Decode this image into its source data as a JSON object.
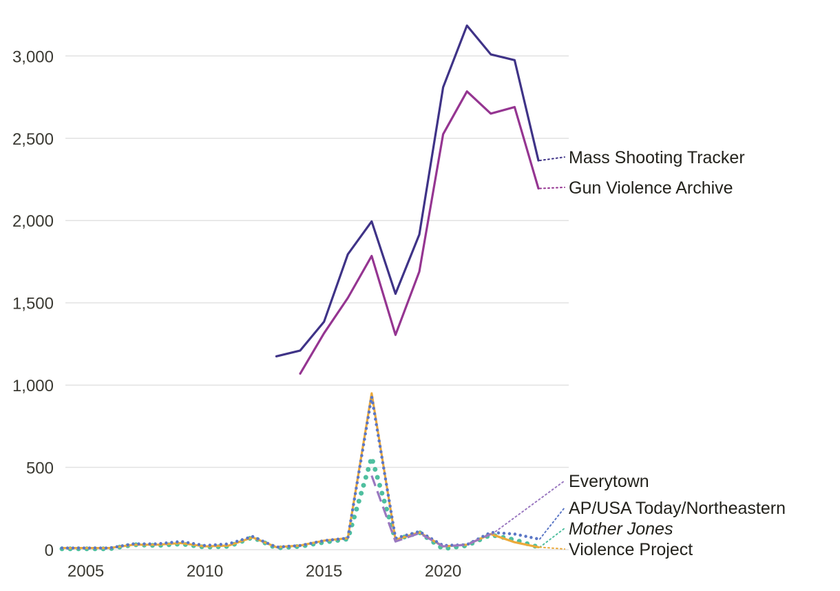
{
  "chart_data": {
    "type": "line",
    "title": "",
    "xlabel": "",
    "ylabel": "",
    "xlim": [
      2004,
      2024
    ],
    "ylim": [
      0,
      3200
    ],
    "grid": "horizontal",
    "x_ticks": [
      2005,
      2010,
      2015,
      2020
    ],
    "x_tick_labels": [
      "2005",
      "2010",
      "2015",
      "2020"
    ],
    "y_ticks": [
      0,
      500,
      1000,
      1500,
      2000,
      2500,
      3000
    ],
    "y_tick_labels": [
      "0",
      "500",
      "1,000",
      "1,500",
      "2,000",
      "2,500",
      "3,000"
    ],
    "series": [
      {
        "name": "Mass Shooting Tracker",
        "color": "#3f3387",
        "style": "solid",
        "x": [
          2013,
          2014,
          2015,
          2016,
          2017,
          2018,
          2019,
          2020,
          2021,
          2022,
          2023,
          2024
        ],
        "values": [
          1175,
          1210,
          1385,
          1795,
          1995,
          1555,
          1915,
          2810,
          3185,
          3010,
          2975,
          2365
        ]
      },
      {
        "name": "Gun Violence Archive",
        "color": "#953591",
        "style": "solid",
        "x": [
          2014,
          2015,
          2016,
          2017,
          2018,
          2019,
          2020,
          2021,
          2022,
          2023,
          2024
        ],
        "values": [
          1070,
          1315,
          1530,
          1785,
          1305,
          1690,
          2525,
          2785,
          2650,
          2690,
          2195
        ]
      },
      {
        "name": "Everytown",
        "color": "#9a78c0",
        "style": "dashed",
        "x": [
          2017,
          2018,
          2019,
          2020,
          2021,
          2022
        ],
        "values": [
          450,
          50,
          100,
          20,
          30,
          95
        ]
      },
      {
        "name": "AP/USA Today/Northeastern",
        "color": "#5b77c6",
        "style": "dotted",
        "x": [
          2004,
          2005,
          2006,
          2007,
          2008,
          2009,
          2010,
          2011,
          2012,
          2013,
          2014,
          2015,
          2016,
          2017,
          2018,
          2019,
          2020,
          2021,
          2022,
          2023,
          2024
        ],
        "values": [
          10,
          10,
          10,
          35,
          35,
          50,
          25,
          35,
          80,
          15,
          25,
          55,
          70,
          930,
          70,
          110,
          25,
          30,
          105,
          95,
          65
        ]
      },
      {
        "name": "Mother Jones",
        "color": "#4fbf9f",
        "style": "dotted",
        "x": [
          2004,
          2005,
          2006,
          2007,
          2008,
          2009,
          2010,
          2011,
          2012,
          2013,
          2014,
          2015,
          2016,
          2017,
          2018,
          2019,
          2020,
          2021,
          2022,
          2023,
          2024
        ],
        "values": [
          5,
          5,
          5,
          30,
          25,
          35,
          15,
          20,
          75,
          10,
          20,
          45,
          65,
          560,
          60,
          105,
          5,
          25,
          90,
          60,
          15
        ]
      },
      {
        "name": "Violence Project",
        "color": "#ecaa3a",
        "style": "solid",
        "x": [
          2004,
          2005,
          2006,
          2007,
          2008,
          2009,
          2010,
          2011,
          2012,
          2013,
          2014,
          2015,
          2016,
          2017,
          2018,
          2019,
          2020,
          2021,
          2022,
          2023,
          2024
        ],
        "values": [
          10,
          10,
          10,
          30,
          30,
          40,
          20,
          25,
          75,
          15,
          25,
          55,
          70,
          950,
          60,
          105,
          20,
          30,
          95,
          45,
          15
        ]
      }
    ],
    "labels": [
      {
        "text": "Mass Shooting Tracker",
        "series": 0,
        "italic": false
      },
      {
        "text": "Gun Violence Archive",
        "series": 1,
        "italic": false
      },
      {
        "text": "Everytown",
        "series": 2,
        "italic": false
      },
      {
        "text": "AP/USA Today/Northeastern",
        "series": 3,
        "italic": false
      },
      {
        "text": "Mother Jones",
        "series": 4,
        "italic": true
      },
      {
        "text": "Violence Project",
        "series": 5,
        "italic": false
      }
    ]
  }
}
